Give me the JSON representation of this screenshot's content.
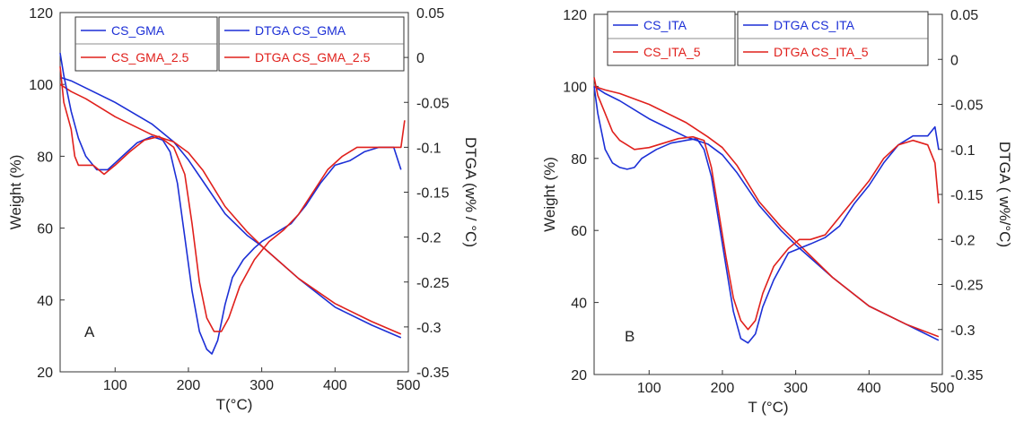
{
  "colors": {
    "blue": "#1c2fd6",
    "red": "#e0201c"
  },
  "chart_data": [
    {
      "type": "line",
      "panel_label": "A",
      "xlabel": "T(°C)",
      "ylabel": "Weight (%)",
      "y2label": "DTGA (w% / °C)",
      "xlim": [
        25,
        500
      ],
      "ylim": [
        20,
        120
      ],
      "y2lim": [
        -0.35,
        0.05
      ],
      "xticks": [
        "100",
        "200",
        "300",
        "400",
        "500"
      ],
      "yticks": [
        "20",
        "40",
        "60",
        "80",
        "100",
        "120"
      ],
      "y2ticks": [
        "-0.35",
        "-0.3",
        "-0.25",
        "-0.2",
        "-0.15",
        "-0.1",
        "-0.05",
        "0",
        "0.05"
      ],
      "legend_left": [
        "CS_GMA",
        "CS_GMA_2.5"
      ],
      "legend_right": [
        "DTGA  CS_GMA",
        "DTGA CS_GMA_2.5"
      ],
      "series": [
        {
          "name": "CS_GMA",
          "axis": "left",
          "color": "blue",
          "x": [
            25,
            40,
            60,
            100,
            150,
            180,
            200,
            220,
            250,
            280,
            300,
            350,
            400,
            450,
            490
          ],
          "y": [
            102,
            101,
            99,
            95,
            89,
            84,
            79,
            73,
            64,
            58,
            55,
            46,
            38,
            33,
            29.5
          ]
        },
        {
          "name": "CS_GMA_2.5",
          "axis": "left",
          "color": "red",
          "x": [
            25,
            40,
            60,
            100,
            150,
            180,
            200,
            220,
            250,
            280,
            300,
            350,
            400,
            450,
            490
          ],
          "y": [
            100,
            98,
            96,
            91,
            86,
            84,
            81,
            76,
            66,
            59,
            55,
            46,
            39,
            34,
            30.5
          ]
        },
        {
          "name": "DTGA  CS_GMA",
          "axis": "right",
          "color": "blue",
          "x": [
            25,
            30,
            40,
            50,
            60,
            75,
            90,
            110,
            130,
            150,
            165,
            175,
            185,
            195,
            205,
            215,
            225,
            232,
            240,
            250,
            260,
            275,
            290,
            300,
            320,
            340,
            360,
            380,
            400,
            420,
            440,
            460,
            480,
            490
          ],
          "y": [
            0.005,
            -0.02,
            -0.06,
            -0.09,
            -0.11,
            -0.125,
            -0.125,
            -0.11,
            -0.095,
            -0.088,
            -0.092,
            -0.105,
            -0.14,
            -0.2,
            -0.26,
            -0.305,
            -0.325,
            -0.33,
            -0.315,
            -0.275,
            -0.245,
            -0.225,
            -0.212,
            -0.205,
            -0.195,
            -0.185,
            -0.165,
            -0.14,
            -0.12,
            -0.115,
            -0.105,
            -0.1,
            -0.1,
            -0.125
          ]
        },
        {
          "name": "DTGA CS_GMA_2.5",
          "axis": "right",
          "color": "red",
          "x": [
            25,
            30,
            40,
            45,
            50,
            60,
            70,
            85,
            100,
            120,
            140,
            160,
            180,
            195,
            205,
            215,
            225,
            235,
            245,
            255,
            270,
            290,
            310,
            330,
            350,
            370,
            390,
            410,
            430,
            450,
            470,
            485,
            490,
            495
          ],
          "y": [
            -0.01,
            -0.05,
            -0.08,
            -0.11,
            -0.12,
            -0.12,
            -0.12,
            -0.13,
            -0.12,
            -0.105,
            -0.092,
            -0.088,
            -0.1,
            -0.13,
            -0.185,
            -0.25,
            -0.29,
            -0.305,
            -0.305,
            -0.29,
            -0.255,
            -0.225,
            -0.205,
            -0.192,
            -0.175,
            -0.15,
            -0.125,
            -0.11,
            -0.1,
            -0.1,
            -0.1,
            -0.1,
            -0.1,
            -0.07
          ]
        }
      ]
    },
    {
      "type": "line",
      "panel_label": "B",
      "xlabel": "T (°C)",
      "ylabel": "Weight (%)",
      "y2label": "DTGA ( w%/°C)",
      "xlim": [
        25,
        500
      ],
      "ylim": [
        20,
        120
      ],
      "y2lim": [
        -0.35,
        0.05
      ],
      "xticks": [
        "100",
        "200",
        "300",
        "400",
        "500"
      ],
      "yticks": [
        "20",
        "40",
        "60",
        "80",
        "100",
        "120"
      ],
      "y2ticks": [
        "-0.35",
        "-0.3",
        "-0.25",
        "-0.2",
        "-0.15",
        "-0.1",
        "-0.05",
        "0",
        "0.05"
      ],
      "legend_left": [
        "CS_ITA",
        "CS_ITA_5"
      ],
      "legend_right": [
        "DTGA CS_ITA",
        "DTGA CS_ITA_5"
      ],
      "series": [
        {
          "name": "CS_ITA",
          "axis": "left",
          "color": "blue",
          "x": [
            25,
            40,
            60,
            100,
            150,
            180,
            200,
            220,
            250,
            280,
            300,
            350,
            400,
            450,
            495
          ],
          "y": [
            100,
            98,
            96,
            91,
            86,
            84,
            81,
            76,
            67,
            60,
            56,
            47,
            39,
            34,
            29.5
          ]
        },
        {
          "name": "CS_ITA_5",
          "axis": "left",
          "color": "red",
          "x": [
            25,
            40,
            60,
            100,
            150,
            180,
            200,
            220,
            250,
            280,
            300,
            350,
            400,
            450,
            495
          ],
          "y": [
            100,
            99,
            98,
            95,
            90,
            86,
            83,
            78,
            68,
            61,
            57,
            47,
            39,
            34,
            30.5
          ]
        },
        {
          "name": "DTGA CS_ITA",
          "axis": "right",
          "color": "blue",
          "x": [
            25,
            30,
            40,
            50,
            60,
            70,
            80,
            90,
            110,
            130,
            150,
            165,
            175,
            185,
            195,
            205,
            215,
            225,
            235,
            245,
            255,
            270,
            290,
            305,
            320,
            340,
            360,
            380,
            400,
            420,
            440,
            460,
            480,
            490,
            495
          ],
          "y": [
            -0.03,
            -0.06,
            -0.1,
            -0.115,
            -0.12,
            -0.122,
            -0.12,
            -0.11,
            -0.1,
            -0.093,
            -0.09,
            -0.088,
            -0.1,
            -0.13,
            -0.18,
            -0.23,
            -0.28,
            -0.31,
            -0.315,
            -0.305,
            -0.275,
            -0.245,
            -0.215,
            -0.21,
            -0.205,
            -0.198,
            -0.185,
            -0.16,
            -0.14,
            -0.115,
            -0.095,
            -0.085,
            -0.085,
            -0.075,
            -0.1
          ]
        },
        {
          "name": "DTGA CS_ITA_5",
          "axis": "right",
          "color": "red",
          "x": [
            25,
            30,
            40,
            50,
            60,
            80,
            100,
            120,
            140,
            160,
            175,
            185,
            195,
            205,
            215,
            225,
            235,
            245,
            255,
            270,
            290,
            305,
            320,
            340,
            360,
            380,
            400,
            420,
            440,
            460,
            480,
            490,
            495
          ],
          "y": [
            -0.02,
            -0.04,
            -0.06,
            -0.08,
            -0.09,
            -0.1,
            -0.098,
            -0.093,
            -0.088,
            -0.086,
            -0.09,
            -0.12,
            -0.17,
            -0.22,
            -0.265,
            -0.29,
            -0.3,
            -0.29,
            -0.26,
            -0.23,
            -0.21,
            -0.2,
            -0.2,
            -0.195,
            -0.175,
            -0.155,
            -0.135,
            -0.11,
            -0.095,
            -0.09,
            -0.095,
            -0.115,
            -0.16
          ]
        }
      ]
    }
  ]
}
